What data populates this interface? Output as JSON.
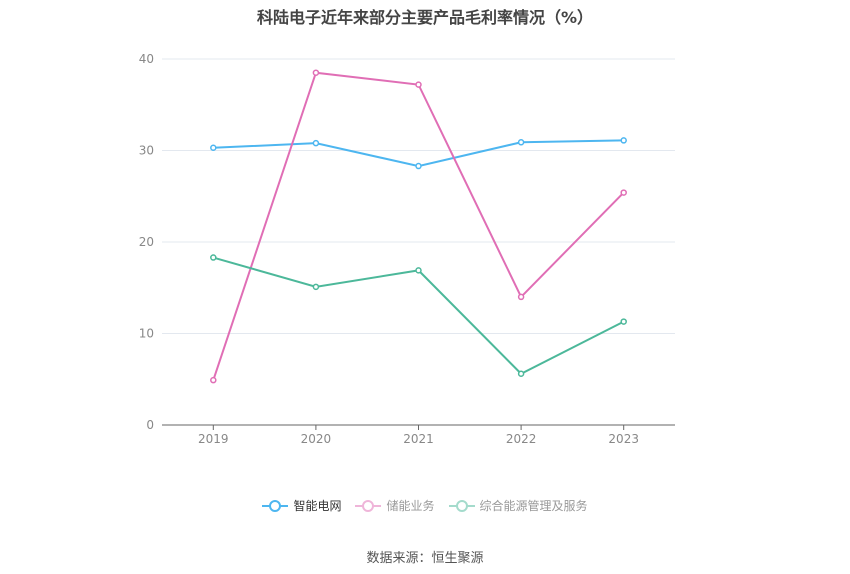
{
  "chart_data": {
    "type": "line",
    "title": "科陆电子近年来部分主要产品毛利率情况（%）",
    "categories": [
      "2019",
      "2020",
      "2021",
      "2022",
      "2023"
    ],
    "ylim": [
      0,
      40
    ],
    "yticks": [
      0,
      10,
      20,
      30,
      40
    ],
    "grid": true,
    "legend_position": "bottom",
    "series": [
      {
        "name": "智能电网",
        "color": "#4db6f0",
        "values": [
          30.3,
          30.8,
          28.3,
          30.9,
          31.1
        ]
      },
      {
        "name": "储能业务",
        "color": "#e06eb5",
        "values": [
          4.9,
          38.5,
          37.2,
          14.0,
          25.4
        ]
      },
      {
        "name": "综合能源管理及服务",
        "color": "#4cb89a",
        "values": [
          18.3,
          15.1,
          16.9,
          5.6,
          11.3
        ]
      }
    ]
  },
  "source": "数据来源：恒生聚源"
}
